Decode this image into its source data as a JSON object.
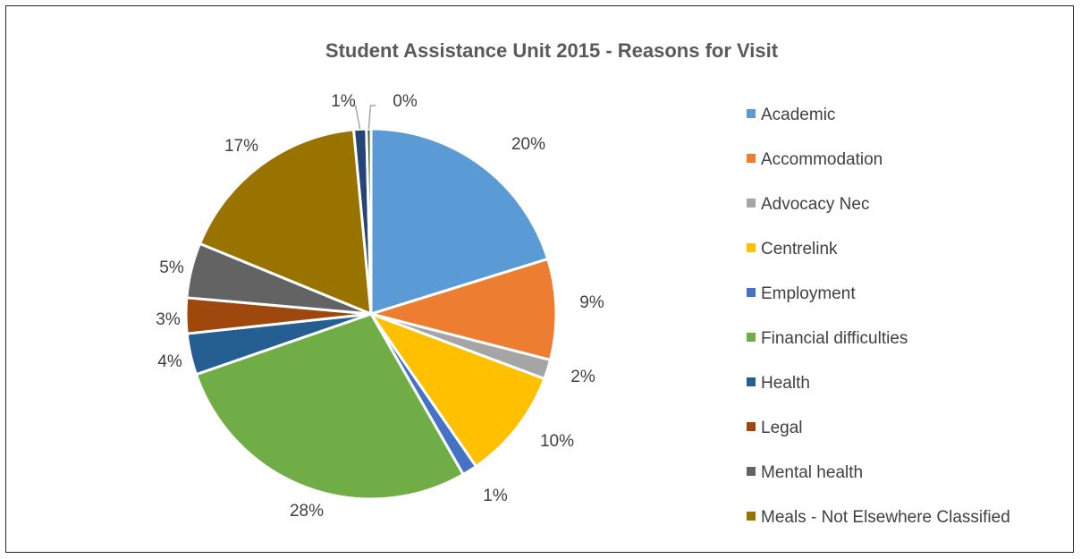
{
  "chart_data": {
    "type": "pie",
    "title": "Student Assistance Unit 2015 - Reasons for Visit",
    "legend_position": "right",
    "slices": [
      {
        "label": "Academic",
        "value": 20.2,
        "display": "20%",
        "color": "#5B9BD5"
      },
      {
        "label": "Accommodation",
        "value": 8.8,
        "display": "9%",
        "color": "#ED7D31"
      },
      {
        "label": "Advocacy Nec",
        "value": 1.7,
        "display": "2%",
        "color": "#A5A5A5"
      },
      {
        "label": "Centrelink",
        "value": 9.7,
        "display": "10%",
        "color": "#FFC000"
      },
      {
        "label": "Employment",
        "value": 1.3,
        "display": "1%",
        "color": "#4472C4"
      },
      {
        "label": "Financial difficulties",
        "value": 28.0,
        "display": "28%",
        "color": "#70AD47"
      },
      {
        "label": "Health",
        "value": 3.6,
        "display": "4%",
        "color": "#255E91"
      },
      {
        "label": "Legal",
        "value": 3.1,
        "display": "3%",
        "color": "#9E480E"
      },
      {
        "label": "Mental health",
        "value": 4.8,
        "display": "5%",
        "color": "#636363"
      },
      {
        "label": "Meals - Not Elsewhere Classified",
        "value": 17.3,
        "display": "17%",
        "color": "#997300"
      },
      {
        "label": "",
        "value": 1.1,
        "display": "1%",
        "color": "#264478"
      },
      {
        "label": "",
        "value": 0.4,
        "display": "0%",
        "color": "#43682B"
      }
    ]
  }
}
